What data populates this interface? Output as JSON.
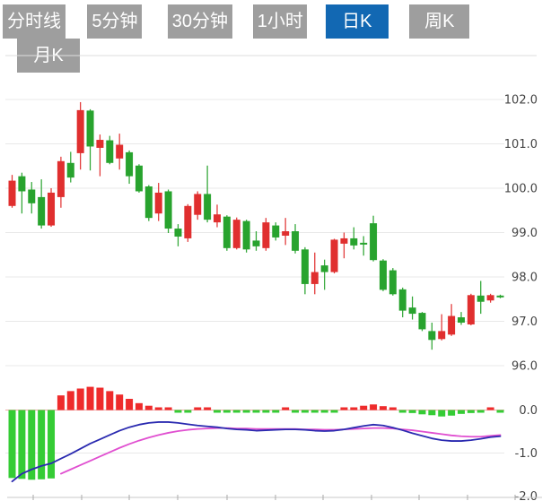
{
  "tabs": [
    {
      "label": "分时线",
      "selected": false
    },
    {
      "label": "5分钟",
      "selected": false
    },
    {
      "label": "30分钟",
      "selected": false
    },
    {
      "label": "1小时",
      "selected": false
    },
    {
      "label": "日K",
      "selected": true
    },
    {
      "label": "周K",
      "selected": false
    },
    {
      "label": "月K",
      "selected": false
    }
  ],
  "colors": {
    "candle_up": "#e02f2f",
    "candle_down": "#28a32e",
    "hist_up": "#ee2b2b",
    "hist_down": "#35cc35",
    "dif_line": "#2a2ab0",
    "dea_line": "#e04fd0",
    "tab_bg": "#9e9e9e",
    "tab_selected_bg": "#1268b3",
    "tab_text": "#ffffff",
    "grid": "#e8e8e8",
    "top_border": "#dddddd",
    "axis_label": "#444444",
    "zero_line": "#f0a8a8",
    "axis_line": "#c8c8c8",
    "tick": "#aaaaaa"
  },
  "chart_data": {
    "type": "candlestick+macd",
    "title": "",
    "legend": [],
    "grid": true,
    "price_axis": {
      "side": "right",
      "ticks": [
        102.0,
        101.0,
        100.0,
        99.0,
        98.0,
        97.0,
        96.0
      ],
      "labels": [
        "102.0",
        "101.0",
        "100.0",
        "99.0",
        "98.0",
        "97.0",
        "96.0"
      ],
      "range": [
        95.8,
        103.0
      ]
    },
    "macd_axis": {
      "side": "right",
      "ticks": [
        0.0,
        -1.0,
        -2.0
      ],
      "labels": [
        "0.0",
        "-1.0",
        "-2.0"
      ],
      "range": [
        0.6,
        -2.05
      ]
    },
    "candles_ohlc": [
      [
        99.6,
        100.3,
        99.56,
        100.17
      ],
      [
        100.27,
        100.35,
        99.43,
        99.93
      ],
      [
        99.97,
        100.14,
        99.43,
        99.66
      ],
      [
        99.8,
        100.2,
        99.09,
        99.16
      ],
      [
        99.16,
        100.0,
        99.13,
        99.9
      ],
      [
        99.8,
        100.71,
        99.56,
        100.61
      ],
      [
        100.57,
        100.82,
        100.13,
        100.24
      ],
      [
        100.79,
        101.94,
        100.42,
        101.76
      ],
      [
        101.75,
        101.78,
        100.4,
        100.94
      ],
      [
        100.91,
        101.21,
        100.27,
        101.09
      ],
      [
        101.08,
        101.18,
        100.54,
        100.57
      ],
      [
        100.67,
        101.23,
        100.42,
        100.98
      ],
      [
        100.81,
        100.85,
        100.1,
        100.27
      ],
      [
        100.51,
        100.54,
        99.9,
        99.93
      ],
      [
        100.04,
        100.07,
        99.26,
        99.33
      ],
      [
        99.43,
        100.12,
        99.26,
        99.9
      ],
      [
        99.93,
        99.97,
        98.99,
        99.09
      ],
      [
        99.09,
        99.19,
        98.69,
        98.91
      ],
      [
        98.87,
        99.64,
        98.79,
        99.6
      ],
      [
        99.4,
        99.93,
        99.29,
        99.87
      ],
      [
        99.87,
        100.51,
        99.23,
        99.29
      ],
      [
        99.23,
        99.63,
        99.12,
        99.41
      ],
      [
        99.36,
        99.39,
        98.59,
        98.65
      ],
      [
        98.65,
        99.34,
        98.62,
        99.29
      ],
      [
        99.26,
        99.29,
        98.55,
        98.62
      ],
      [
        98.82,
        99.03,
        98.59,
        98.69
      ],
      [
        98.65,
        99.33,
        98.59,
        99.23
      ],
      [
        99.16,
        99.23,
        98.82,
        98.89
      ],
      [
        98.93,
        99.33,
        98.72,
        99.03
      ],
      [
        99.03,
        99.19,
        98.53,
        98.59
      ],
      [
        98.62,
        98.67,
        97.61,
        97.84
      ],
      [
        97.84,
        98.55,
        97.61,
        98.11
      ],
      [
        98.26,
        98.39,
        97.71,
        98.11
      ],
      [
        98.11,
        98.86,
        98.08,
        98.84
      ],
      [
        98.75,
        99.0,
        98.42,
        98.87
      ],
      [
        98.87,
        99.12,
        98.62,
        98.71
      ],
      [
        98.77,
        98.92,
        98.48,
        98.74
      ],
      [
        99.21,
        99.38,
        98.35,
        98.38
      ],
      [
        98.37,
        98.4,
        97.68,
        97.71
      ],
      [
        98.15,
        98.2,
        97.58,
        97.61
      ],
      [
        97.72,
        97.76,
        97.09,
        97.24
      ],
      [
        97.31,
        97.56,
        97.04,
        97.17
      ],
      [
        97.19,
        97.21,
        96.78,
        96.82
      ],
      [
        96.78,
        96.97,
        96.36,
        96.58
      ],
      [
        96.6,
        97.16,
        96.57,
        96.78
      ],
      [
        96.7,
        97.39,
        96.67,
        97.12
      ],
      [
        97.09,
        97.21,
        96.92,
        96.97
      ],
      [
        96.93,
        97.62,
        96.91,
        97.59
      ],
      [
        97.58,
        97.91,
        97.17,
        97.44
      ],
      [
        97.47,
        97.62,
        97.42,
        97.59
      ],
      [
        97.58,
        97.6,
        97.52,
        97.54
      ]
    ],
    "macd": {
      "histogram": [
        -1.58,
        -1.6,
        -1.62,
        -1.61,
        -1.59,
        0.34,
        0.44,
        0.5,
        0.54,
        0.52,
        0.44,
        0.36,
        0.26,
        0.16,
        0.1,
        0.06,
        0.04,
        -0.03,
        -0.04,
        0.02,
        0.03,
        -0.02,
        -0.04,
        -0.04,
        -0.05,
        -0.04,
        -0.04,
        -0.03,
        0.03,
        -0.03,
        -0.05,
        -0.05,
        -0.05,
        -0.04,
        0.02,
        0.06,
        0.1,
        0.13,
        0.09,
        0.04,
        -0.04,
        -0.07,
        -0.1,
        -0.12,
        -0.15,
        -0.13,
        -0.09,
        -0.07,
        -0.04,
        0.03,
        -0.02
      ],
      "dif": [
        -1.66,
        -1.48,
        -1.38,
        -1.3,
        -1.24,
        -1.13,
        -1.02,
        -0.9,
        -0.78,
        -0.68,
        -0.58,
        -0.48,
        -0.4,
        -0.34,
        -0.3,
        -0.28,
        -0.28,
        -0.3,
        -0.33,
        -0.36,
        -0.38,
        -0.4,
        -0.43,
        -0.45,
        -0.46,
        -0.48,
        -0.47,
        -0.46,
        -0.45,
        -0.45,
        -0.46,
        -0.48,
        -0.49,
        -0.48,
        -0.45,
        -0.41,
        -0.37,
        -0.34,
        -0.36,
        -0.41,
        -0.47,
        -0.54,
        -0.6,
        -0.66,
        -0.7,
        -0.72,
        -0.72,
        -0.7,
        -0.67,
        -0.63,
        -0.61
      ],
      "dea": [
        null,
        null,
        null,
        null,
        null,
        -1.48,
        -1.38,
        -1.28,
        -1.18,
        -1.08,
        -0.98,
        -0.88,
        -0.79,
        -0.71,
        -0.64,
        -0.58,
        -0.53,
        -0.49,
        -0.46,
        -0.44,
        -0.43,
        -0.42,
        -0.42,
        -0.43,
        -0.43,
        -0.44,
        -0.44,
        -0.44,
        -0.44,
        -0.44,
        -0.45,
        -0.45,
        -0.46,
        -0.46,
        -0.45,
        -0.44,
        -0.43,
        -0.42,
        -0.42,
        -0.43,
        -0.45,
        -0.47,
        -0.5,
        -0.53,
        -0.56,
        -0.59,
        -0.61,
        -0.62,
        -0.62,
        -0.6,
        -0.58
      ]
    }
  }
}
